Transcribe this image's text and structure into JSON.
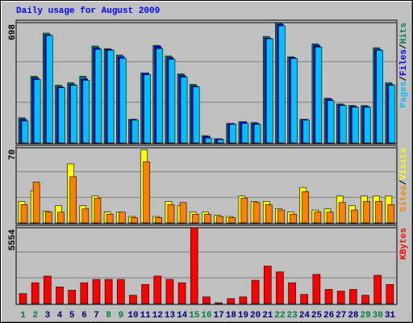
{
  "chart_data": [
    {
      "type": "bar",
      "title": "Daily usage for August 2009",
      "ylim": [
        0,
        698
      ],
      "yticks": [
        698
      ],
      "legend_separator": "/",
      "series": [
        {
          "name": "Pages",
          "color": "#00c0ff",
          "values": [
            127,
            368,
            623,
            320,
            335,
            363,
            543,
            538,
            491,
            132,
            396,
            547,
            485,
            382,
            325,
            28,
            19,
            108,
            113,
            108,
            604,
            679,
            490,
            132,
            556,
            245,
            217,
            207,
            207,
            538,
            335
          ]
        },
        {
          "name": "Files",
          "color": "#0000ff",
          "values": [
            137,
            377,
            627,
            325,
            339,
            372,
            552,
            542,
            500,
            137,
            406,
            561,
            495,
            391,
            330,
            38,
            24,
            113,
            123,
            113,
            608,
            689,
            495,
            137,
            566,
            254,
            221,
            212,
            212,
            542,
            339
          ]
        },
        {
          "name": "Hits",
          "color": "#00805c",
          "values": [
            146,
            387,
            637,
            335,
            349,
            387,
            562,
            547,
            510,
            137,
            406,
            566,
            505,
            401,
            340,
            42,
            24,
            113,
            123,
            118,
            618,
            698,
            500,
            137,
            575,
            259,
            226,
            217,
            217,
            552,
            349
          ]
        }
      ]
    },
    {
      "type": "bar",
      "ylim": [
        0,
        70
      ],
      "yticks": [
        70
      ],
      "legend_separator": "/",
      "series": [
        {
          "name": "Sites",
          "color": "#ff8000",
          "values": [
            17,
            38,
            10,
            10,
            43,
            13,
            23,
            8,
            10,
            5,
            57,
            5,
            17,
            19,
            8,
            8,
            6,
            5,
            23,
            19,
            17,
            12,
            8,
            29,
            10,
            10,
            19,
            12,
            20,
            20,
            17
          ]
        },
        {
          "name": "Visits",
          "color": "#ffff00",
          "values": [
            20,
            30,
            11,
            16,
            55,
            16,
            25,
            10,
            10,
            6,
            68,
            6,
            20,
            16,
            10,
            10,
            7,
            6,
            25,
            20,
            20,
            13,
            10,
            33,
            12,
            13,
            25,
            16,
            25,
            25,
            25
          ]
        }
      ]
    },
    {
      "type": "bar",
      "ylim": [
        0,
        5554
      ],
      "yticks": [
        5554
      ],
      "categories": [
        "1",
        "2",
        "3",
        "4",
        "5",
        "6",
        "7",
        "8",
        "9",
        "10",
        "11",
        "12",
        "13",
        "14",
        "15",
        "16",
        "17",
        "18",
        "19",
        "20",
        "21",
        "22",
        "23",
        "24",
        "25",
        "26",
        "27",
        "28",
        "29",
        "30",
        "31"
      ],
      "category_colors": [
        "#008040",
        "#008040",
        "#000080",
        "#000080",
        "#000080",
        "#000080",
        "#000080",
        "#008040",
        "#008040",
        "#000080",
        "#000080",
        "#000080",
        "#000080",
        "#000080",
        "#008040",
        "#008040",
        "#000080",
        "#000080",
        "#000080",
        "#000080",
        "#000080",
        "#008040",
        "#008040",
        "#000080",
        "#000080",
        "#000080",
        "#000080",
        "#000080",
        "#008040",
        "#008040",
        "#000080"
      ],
      "series": [
        {
          "name": "KBytes",
          "color": "#ff0000",
          "values": [
            732,
            1526,
            2014,
            1221,
            977,
            1526,
            1770,
            1770,
            1770,
            610,
            1404,
            2014,
            1770,
            1526,
            5554,
            488,
            61,
            366,
            488,
            1709,
            2747,
            2319,
            1526,
            671,
            2136,
            1038,
            916,
            1038,
            610,
            2075,
            1404
          ]
        }
      ]
    }
  ]
}
